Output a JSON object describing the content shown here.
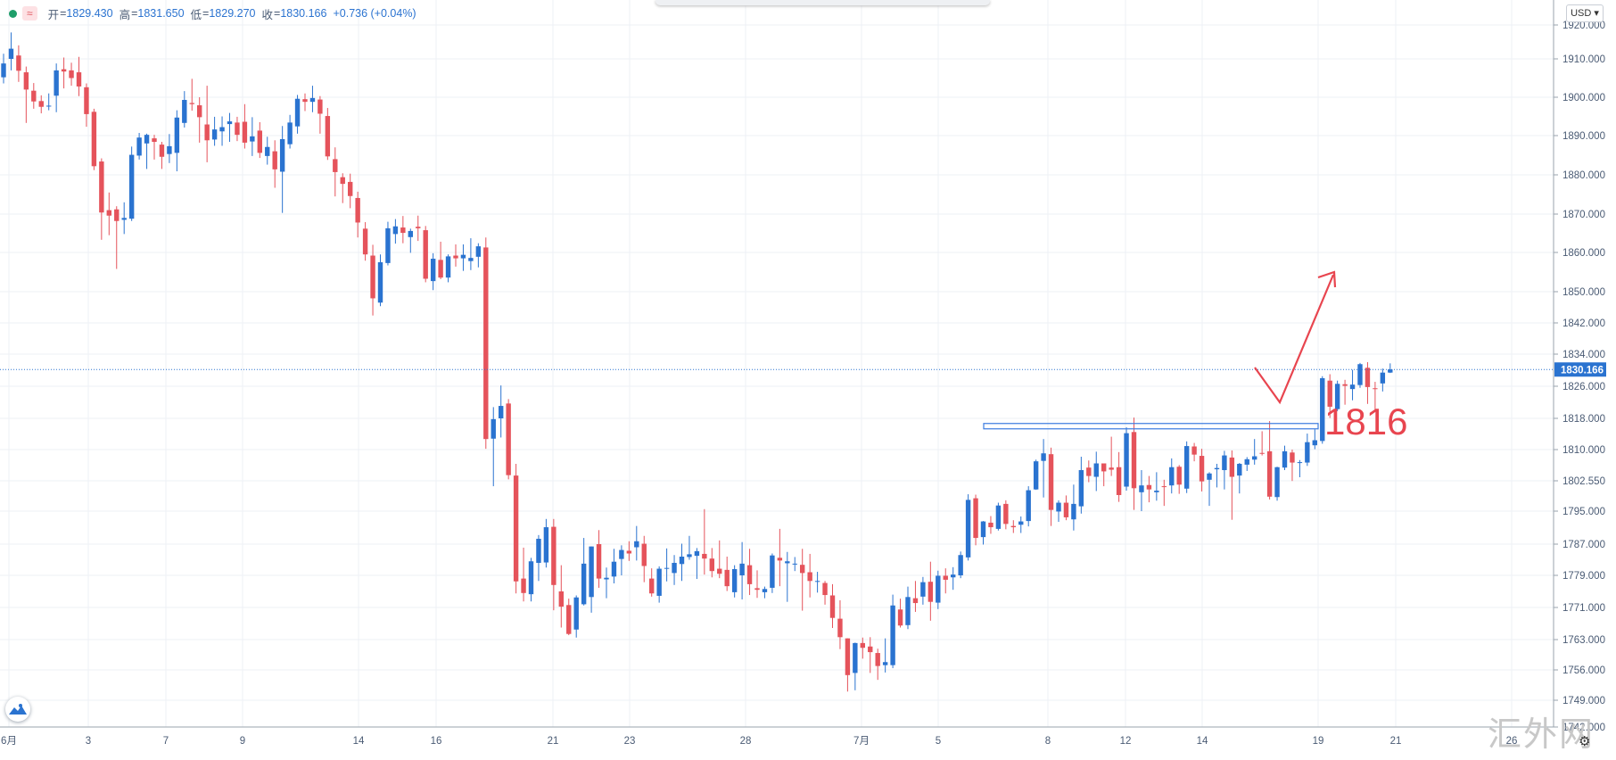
{
  "ohlc_bar": {
    "open_label": "开",
    "open": "1829.430",
    "high_label": "高",
    "high": "1831.650",
    "low_label": "低",
    "low": "1829.270",
    "close_label": "收",
    "close": "1830.166",
    "change": "+0.736 (+0.04%)",
    "indicator_icon": "wave-icon"
  },
  "currency": "USD",
  "watermark": "汇外网",
  "annotation": {
    "label": "1816",
    "color": "#e8454f"
  },
  "colors": {
    "up": "#2a73d0",
    "down": "#e5535b",
    "price_line": "#2a73d0",
    "zone": "#3b7be0"
  },
  "chart_data": {
    "type": "candlestick",
    "ylim": [
      1742,
      1927
    ],
    "yticks": [
      "1920.000",
      "1910.000",
      "1900.000",
      "1890.000",
      "1880.000",
      "1870.000",
      "1860.000",
      "1850.000",
      "1842.000",
      "1834.000",
      "1826.000",
      "1818.000",
      "1810.000",
      "1802.550",
      "1795.000",
      "1787.000",
      "1779.000",
      "1771.000",
      "1763.000",
      "1756.000",
      "1749.000",
      "1742.000"
    ],
    "xticks": [
      "6月",
      "3",
      "7",
      "9",
      "14",
      "16",
      "21",
      "23",
      "28",
      "7月",
      "5",
      "8",
      "12",
      "14",
      "19",
      "21",
      "26"
    ],
    "last_price": "1830.166",
    "zone": {
      "price": 1816,
      "label": "1816"
    },
    "candles": [
      [
        1905.2,
        1911.5,
        1903.6,
        1908.8
      ],
      [
        1910,
        1917.8,
        1907,
        1913
      ],
      [
        1911,
        1914,
        1904,
        1906.9
      ],
      [
        1906.5,
        1908,
        1893.3,
        1902
      ],
      [
        1901.7,
        1903.7,
        1897,
        1898.9
      ],
      [
        1899,
        1900.5,
        1895.8,
        1897.5
      ],
      [
        1897.7,
        1901,
        1896.6,
        1897.8
      ],
      [
        1900.4,
        1908.8,
        1896.1,
        1907
      ],
      [
        1907.3,
        1910.4,
        1902.3,
        1906.7
      ],
      [
        1907,
        1909,
        1903,
        1905
      ],
      [
        1906.5,
        1910.6,
        1900.3,
        1902.8
      ],
      [
        1902.6,
        1903.6,
        1892.3,
        1895.6
      ],
      [
        1896.2,
        1897,
        1881.2,
        1882.2
      ],
      [
        1883.4,
        1884.2,
        1863.3,
        1870.4
      ],
      [
        1871,
        1875.5,
        1864.5,
        1869.6
      ],
      [
        1871.2,
        1872,
        1855.8,
        1868.2
      ],
      [
        1868.5,
        1873,
        1864.8,
        1869
      ],
      [
        1868.8,
        1887.2,
        1868.2,
        1885.1
      ],
      [
        1884.9,
        1890.7,
        1883.9,
        1889.5
      ],
      [
        1888,
        1890.5,
        1881.5,
        1890.2
      ],
      [
        1889.3,
        1890.2,
        1883.9,
        1888.4
      ],
      [
        1887.7,
        1888.4,
        1881.5,
        1884.6
      ],
      [
        1885.3,
        1890.4,
        1883,
        1887.3
      ],
      [
        1885.6,
        1896.6,
        1880.9,
        1894.7
      ],
      [
        1893.3,
        1901.6,
        1892.1,
        1899.3
      ],
      [
        1898.5,
        1904.8,
        1896.5,
        1898.2
      ],
      [
        1897.9,
        1900,
        1888.2,
        1894.8
      ],
      [
        1892.9,
        1903,
        1883.2,
        1888.8
      ],
      [
        1889,
        1894.9,
        1887.4,
        1891.6
      ],
      [
        1891.1,
        1895,
        1887.4,
        1892.2
      ],
      [
        1893,
        1895.9,
        1888.4,
        1893.7
      ],
      [
        1893.4,
        1894.9,
        1888.6,
        1890.2
      ],
      [
        1893.6,
        1898.2,
        1886.7,
        1888.2
      ],
      [
        1888.5,
        1894.8,
        1884.8,
        1889.8
      ],
      [
        1891.3,
        1893.5,
        1884.3,
        1885.6
      ],
      [
        1884.8,
        1889.7,
        1882.6,
        1887.1
      ],
      [
        1886,
        1888.8,
        1876.7,
        1881.4
      ],
      [
        1880.8,
        1892.5,
        1870.3,
        1889.1
      ],
      [
        1887.8,
        1895.4,
        1886.7,
        1893.4
      ],
      [
        1892.4,
        1900.6,
        1890.5,
        1899.6
      ],
      [
        1899.5,
        1901,
        1896.4,
        1898.8
      ],
      [
        1898.8,
        1903,
        1896.1,
        1899.8
      ],
      [
        1899.4,
        1900.3,
        1890.5,
        1895.7
      ],
      [
        1895.1,
        1897.2,
        1883.8,
        1884.7
      ],
      [
        1884,
        1887,
        1874.5,
        1880.7
      ],
      [
        1879.4,
        1880.4,
        1872.8,
        1877.7
      ],
      [
        1878.2,
        1880.3,
        1871.5,
        1874.6
      ],
      [
        1874.1,
        1875.7,
        1863.9,
        1867.8
      ],
      [
        1866.2,
        1867.9,
        1857.9,
        1859.5
      ],
      [
        1859.2,
        1862,
        1843.9,
        1848.3
      ],
      [
        1847.2,
        1859.5,
        1846.3,
        1857.5
      ],
      [
        1857.3,
        1868,
        1856.7,
        1866.3
      ],
      [
        1864.8,
        1868.7,
        1862.3,
        1866.8
      ],
      [
        1866.5,
        1869.5,
        1862.4,
        1865.1
      ],
      [
        1864,
        1866.2,
        1859.9,
        1865.6
      ],
      [
        1866.7,
        1869.6,
        1863,
        1866.3
      ],
      [
        1865.8,
        1866.9,
        1852.4,
        1853.3
      ],
      [
        1852.7,
        1859.8,
        1850.4,
        1858.4
      ],
      [
        1858.1,
        1862.8,
        1853.2,
        1853.6
      ],
      [
        1853.6,
        1859.5,
        1852.4,
        1859
      ],
      [
        1859.2,
        1862.1,
        1856.4,
        1858.5
      ],
      [
        1858.5,
        1862.1,
        1855.3,
        1859.4
      ],
      [
        1857.8,
        1863.7,
        1855.5,
        1858.6
      ],
      [
        1858.9,
        1862.4,
        1856.2,
        1861.6
      ],
      [
        1861.3,
        1863.9,
        1810.2,
        1812.7
      ],
      [
        1812.8,
        1820.8,
        1801.2,
        1817.8
      ],
      [
        1818,
        1826.2,
        1813.1,
        1821.1
      ],
      [
        1821.7,
        1822.8,
        1802.9,
        1803.9
      ],
      [
        1803.8,
        1806.6,
        1774.5,
        1777.5
      ],
      [
        1778.2,
        1786.1,
        1772.5,
        1774.6
      ],
      [
        1774.3,
        1783.5,
        1772.5,
        1782.6
      ],
      [
        1782.2,
        1789.2,
        1777.6,
        1788.3
      ],
      [
        1782.3,
        1793.1,
        1781,
        1791.1
      ],
      [
        1791.2,
        1793.1,
        1770.3,
        1776.6
      ],
      [
        1775,
        1781.6,
        1766,
        1771.2
      ],
      [
        1771.6,
        1773.2,
        1764.1,
        1764.4
      ],
      [
        1765.5,
        1774,
        1763.5,
        1773.5
      ],
      [
        1771.8,
        1788.5,
        1771.5,
        1782
      ],
      [
        1773.6,
        1786.4,
        1769.7,
        1786.4
      ],
      [
        1787,
        1790.4,
        1775.9,
        1778.2
      ],
      [
        1778,
        1781,
        1773.3,
        1778.4
      ],
      [
        1778.7,
        1785.8,
        1777,
        1782.5
      ],
      [
        1783.2,
        1786.7,
        1779,
        1785.5
      ],
      [
        1785.3,
        1787.7,
        1782.7,
        1784.6
      ],
      [
        1786.2,
        1791.4,
        1782.8,
        1787.7
      ],
      [
        1787.1,
        1789,
        1777.3,
        1781.4
      ],
      [
        1778.2,
        1780.8,
        1773.7,
        1774.5
      ],
      [
        1773.9,
        1781.3,
        1772.2,
        1780.7
      ],
      [
        1780.8,
        1785.9,
        1777.5,
        1780.9
      ],
      [
        1779.6,
        1784.2,
        1776.6,
        1782.2
      ],
      [
        1781.9,
        1787.1,
        1777.6,
        1783.8
      ],
      [
        1783.7,
        1789,
        1783,
        1784.4
      ],
      [
        1784,
        1786,
        1778.1,
        1785.2
      ],
      [
        1784.5,
        1795.5,
        1779.2,
        1783.3
      ],
      [
        1783.3,
        1786,
        1778.5,
        1780.1
      ],
      [
        1780.7,
        1787.9,
        1778.3,
        1779.4
      ],
      [
        1780.4,
        1783.8,
        1775.1,
        1776.3
      ],
      [
        1774.8,
        1781.6,
        1773.5,
        1780.6
      ],
      [
        1779,
        1787.5,
        1773,
        1782
      ],
      [
        1781.6,
        1785.8,
        1774.1,
        1776.8
      ],
      [
        1775.8,
        1780.3,
        1773.4,
        1775.4
      ],
      [
        1774.8,
        1776.2,
        1773.3,
        1775.6
      ],
      [
        1775.9,
        1784.6,
        1774.6,
        1784.1
      ],
      [
        1783.5,
        1790.7,
        1776.3,
        1782.8
      ],
      [
        1782.1,
        1785,
        1772.4,
        1782.6
      ],
      [
        1781.8,
        1783.7,
        1780.1,
        1782
      ],
      [
        1781.7,
        1785.8,
        1770.2,
        1779.6
      ],
      [
        1779.8,
        1784.5,
        1773.5,
        1777.6
      ],
      [
        1777.4,
        1779.9,
        1774.7,
        1777.6
      ],
      [
        1777.1,
        1777.6,
        1771.7,
        1774.1
      ],
      [
        1774,
        1776.8,
        1765.9,
        1768.4
      ],
      [
        1768.2,
        1772.8,
        1760.8,
        1763.6
      ],
      [
        1763.3,
        1763.3,
        1751,
        1754.8
      ],
      [
        1755.3,
        1762.3,
        1751.3,
        1762.2
      ],
      [
        1762.2,
        1763.5,
        1758.6,
        1761.1
      ],
      [
        1761.4,
        1763.6,
        1755.3,
        1760.1
      ],
      [
        1759.9,
        1760.9,
        1753.7,
        1756.9
      ],
      [
        1757.1,
        1763.3,
        1755.4,
        1757.8
      ],
      [
        1757.1,
        1774.2,
        1756.4,
        1771.5
      ],
      [
        1770.5,
        1773.2,
        1766,
        1766.5
      ],
      [
        1766.6,
        1776.2,
        1765.6,
        1773.6
      ],
      [
        1773.3,
        1777.6,
        1769.9,
        1772.1
      ],
      [
        1773.7,
        1778.6,
        1771.7,
        1777.3
      ],
      [
        1777.4,
        1782.5,
        1767.7,
        1772.4
      ],
      [
        1772.2,
        1780.2,
        1770.6,
        1778.9
      ],
      [
        1778.9,
        1780.8,
        1774.5,
        1777.9
      ],
      [
        1778.5,
        1781.1,
        1775.4,
        1779.2
      ],
      [
        1779,
        1785.1,
        1778.3,
        1784.2
      ],
      [
        1783.6,
        1799.2,
        1782.8,
        1797.8
      ],
      [
        1798.2,
        1799.1,
        1786.7,
        1788.5
      ],
      [
        1788.7,
        1792.6,
        1786.9,
        1792.5
      ],
      [
        1792.2,
        1793.8,
        1789.5,
        1791.1
      ],
      [
        1790.7,
        1797.1,
        1790.3,
        1796.4
      ],
      [
        1796.8,
        1797.7,
        1790.6,
        1791.9
      ],
      [
        1791.4,
        1792.8,
        1789.7,
        1791.1
      ],
      [
        1791.7,
        1793.7,
        1789.7,
        1792.5
      ],
      [
        1792.6,
        1801.2,
        1791.3,
        1800.2
      ],
      [
        1800.4,
        1807.6,
        1800.3,
        1807.2
      ],
      [
        1807.3,
        1812.7,
        1798.4,
        1809.1
      ],
      [
        1808.9,
        1810.5,
        1791.4,
        1795.3
      ],
      [
        1794.9,
        1797.7,
        1792.4,
        1797.1
      ],
      [
        1797.1,
        1798.9,
        1792.8,
        1793.5
      ],
      [
        1793,
        1801.6,
        1790.3,
        1796.8
      ],
      [
        1796.2,
        1808.3,
        1794.4,
        1805.1
      ],
      [
        1805.7,
        1807.4,
        1802.2,
        1803.7
      ],
      [
        1803.5,
        1809.5,
        1800,
        1806.7
      ],
      [
        1806.7,
        1806.7,
        1801.2,
        1804.8
      ],
      [
        1805.7,
        1813.3,
        1803.7,
        1805.2
      ],
      [
        1805.8,
        1809.4,
        1797.3,
        1799
      ],
      [
        1801.1,
        1815.7,
        1800.1,
        1814.2
      ],
      [
        1814.5,
        1818.2,
        1795.3,
        1800.7
      ],
      [
        1799.7,
        1805.1,
        1795,
        1801.4
      ],
      [
        1801.5,
        1803.7,
        1797.2,
        1800.4
      ],
      [
        1799.7,
        1804.6,
        1797.6,
        1800.1
      ],
      [
        1801.2,
        1802.8,
        1796.3,
        1801.1
      ],
      [
        1801.4,
        1807.9,
        1799.4,
        1805.8
      ],
      [
        1805.9,
        1806.3,
        1799.3,
        1801.6
      ],
      [
        1800.6,
        1812.1,
        1799.5,
        1810.9
      ],
      [
        1810.8,
        1811.7,
        1807.2,
        1808.8
      ],
      [
        1808.5,
        1810.2,
        1799.9,
        1802.4
      ],
      [
        1802.8,
        1804.6,
        1796.3,
        1804.3
      ],
      [
        1805.3,
        1806.6,
        1800.9,
        1805.6
      ],
      [
        1805.1,
        1809.7,
        1800.4,
        1808.6
      ],
      [
        1808.1,
        1809.8,
        1792.9,
        1803.5
      ],
      [
        1803.8,
        1806.8,
        1799.4,
        1806.6
      ],
      [
        1806.4,
        1808.2,
        1804.9,
        1807.7
      ],
      [
        1807.6,
        1812.7,
        1806.4,
        1808.4
      ],
      [
        1809.2,
        1814.7,
        1808.6,
        1809.1
      ],
      [
        1809.6,
        1817.3,
        1797.9,
        1798.6
      ],
      [
        1798.5,
        1805.9,
        1797.6,
        1805.8
      ],
      [
        1805.7,
        1811,
        1805.1,
        1809.6
      ],
      [
        1809.3,
        1810,
        1802.5,
        1806.9
      ],
      [
        1806.9,
        1807.5,
        1803.4,
        1807
      ],
      [
        1806.9,
        1814.1,
        1806.1,
        1811.9
      ],
      [
        1811.1,
        1815.2,
        1810.1,
        1812.4
      ],
      [
        1812.2,
        1828.5,
        1811.5,
        1828
      ],
      [
        1827.4,
        1829,
        1818.1,
        1820.9
      ],
      [
        1820.3,
        1827.4,
        1819.8,
        1826.6
      ],
      [
        1826.5,
        1827.6,
        1821.4,
        1826.1
      ],
      [
        1825.3,
        1830.1,
        1822.5,
        1826.4
      ],
      [
        1826.3,
        1831.8,
        1825.6,
        1831.5
      ],
      [
        1830.6,
        1832,
        1821.6,
        1825.8
      ],
      [
        1825.5,
        1827.1,
        1819.8,
        1825.4
      ],
      [
        1826.7,
        1830.4,
        1824.7,
        1829.4
      ],
      [
        1829.4,
        1831.7,
        1829.3,
        1830.2
      ]
    ]
  }
}
